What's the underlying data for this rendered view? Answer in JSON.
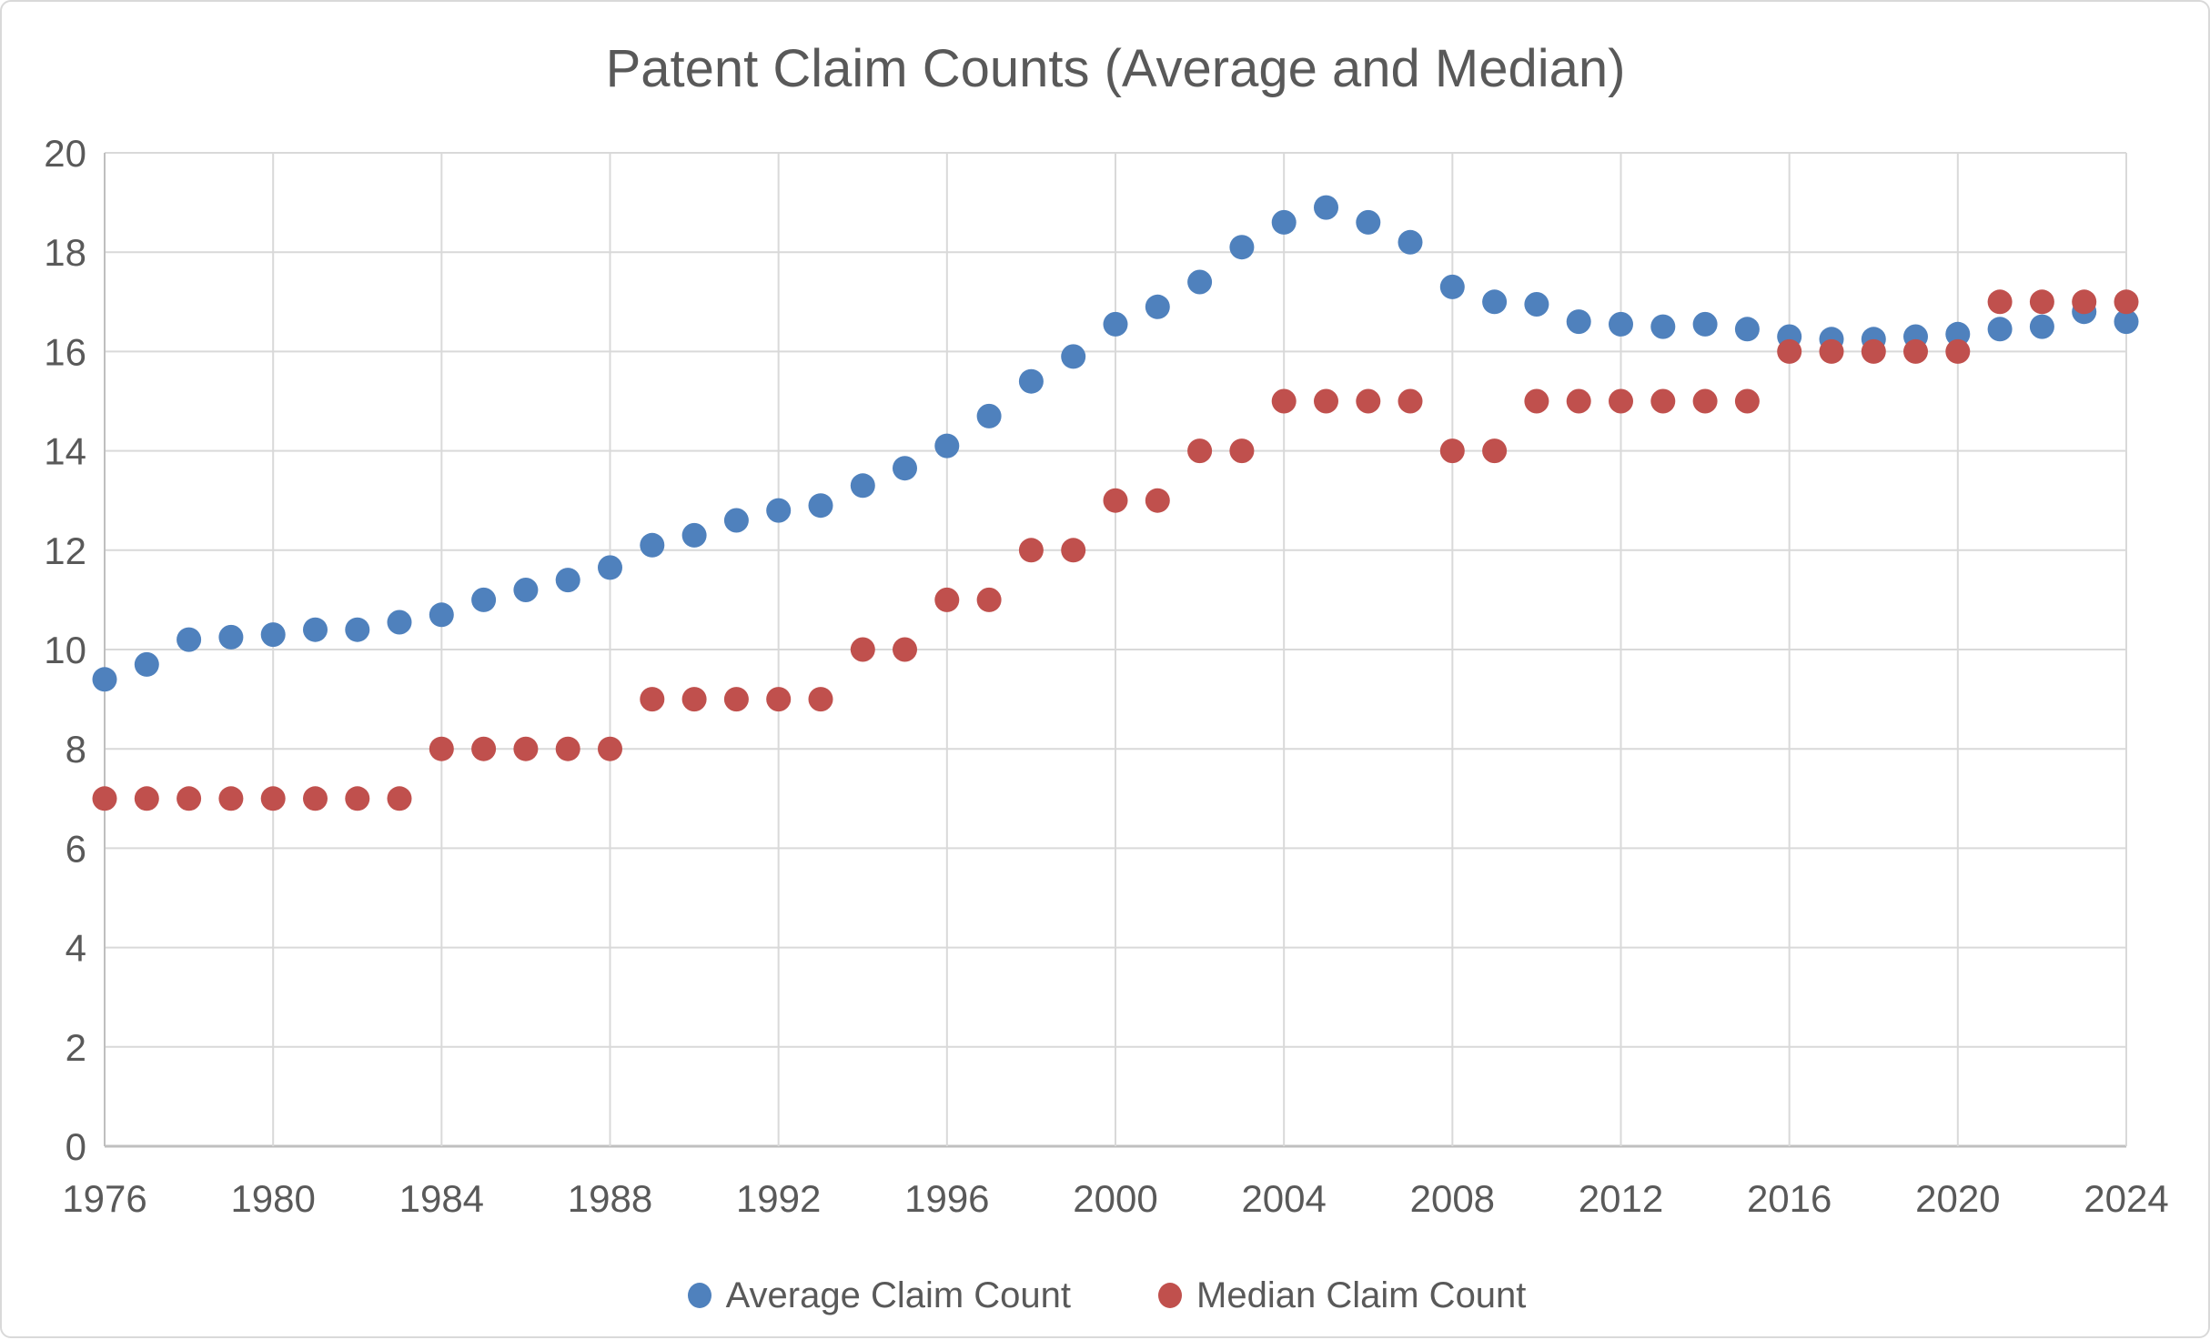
{
  "chart_data": {
    "type": "scatter",
    "title": "Patent Claim Counts (Average and Median)",
    "xlabel": "",
    "ylabel": "",
    "xlim": [
      1976,
      2024
    ],
    "ylim": [
      0,
      20
    ],
    "x_ticks": [
      1976,
      1980,
      1984,
      1988,
      1992,
      1996,
      2000,
      2004,
      2008,
      2012,
      2016,
      2020,
      2024
    ],
    "y_ticks": [
      0,
      2,
      4,
      6,
      8,
      10,
      12,
      14,
      16,
      18,
      20
    ],
    "grid": true,
    "legend_position": "bottom",
    "x": [
      1976,
      1977,
      1978,
      1979,
      1980,
      1981,
      1982,
      1983,
      1984,
      1985,
      1986,
      1987,
      1988,
      1989,
      1990,
      1991,
      1992,
      1993,
      1994,
      1995,
      1996,
      1997,
      1998,
      1999,
      2000,
      2001,
      2002,
      2003,
      2004,
      2005,
      2006,
      2007,
      2008,
      2009,
      2010,
      2011,
      2012,
      2013,
      2014,
      2015,
      2016,
      2017,
      2018,
      2019,
      2020,
      2021,
      2022,
      2023,
      2024
    ],
    "series": [
      {
        "name": "Average Claim Count",
        "color": "#4F81BD",
        "values": [
          9.4,
          9.7,
          10.2,
          10.25,
          10.3,
          10.4,
          10.4,
          10.55,
          10.7,
          11.0,
          11.2,
          11.4,
          11.65,
          12.1,
          12.3,
          12.6,
          12.8,
          12.9,
          13.3,
          13.65,
          14.1,
          14.7,
          15.4,
          15.9,
          16.55,
          16.9,
          17.4,
          18.1,
          18.6,
          18.9,
          18.6,
          18.2,
          17.3,
          17.0,
          16.95,
          16.6,
          16.55,
          16.5,
          16.55,
          16.45,
          16.3,
          16.25,
          16.25,
          16.3,
          16.35,
          16.45,
          16.5,
          16.8,
          16.6
        ]
      },
      {
        "name": "Median Claim Count",
        "color": "#C0504D",
        "values": [
          7,
          7,
          7,
          7,
          7,
          7,
          7,
          7,
          8,
          8,
          8,
          8,
          8,
          9,
          9,
          9,
          9,
          9,
          10,
          10,
          11,
          11,
          12,
          12,
          13,
          13,
          14,
          14,
          15,
          15,
          15,
          15,
          14,
          14,
          15,
          15,
          15,
          15,
          15,
          15,
          16,
          16,
          16,
          16,
          16,
          17,
          17,
          17,
          17
        ]
      }
    ]
  },
  "styles": {
    "title_color": "#595959",
    "tick_label_color": "#595959",
    "legend_text_color": "#595959",
    "gridline_color": "#D9D9D9",
    "axis_line_color": "#BFBFBF",
    "background_color": "#FFFFFF",
    "frame_border_color": "#D9D9D9"
  }
}
